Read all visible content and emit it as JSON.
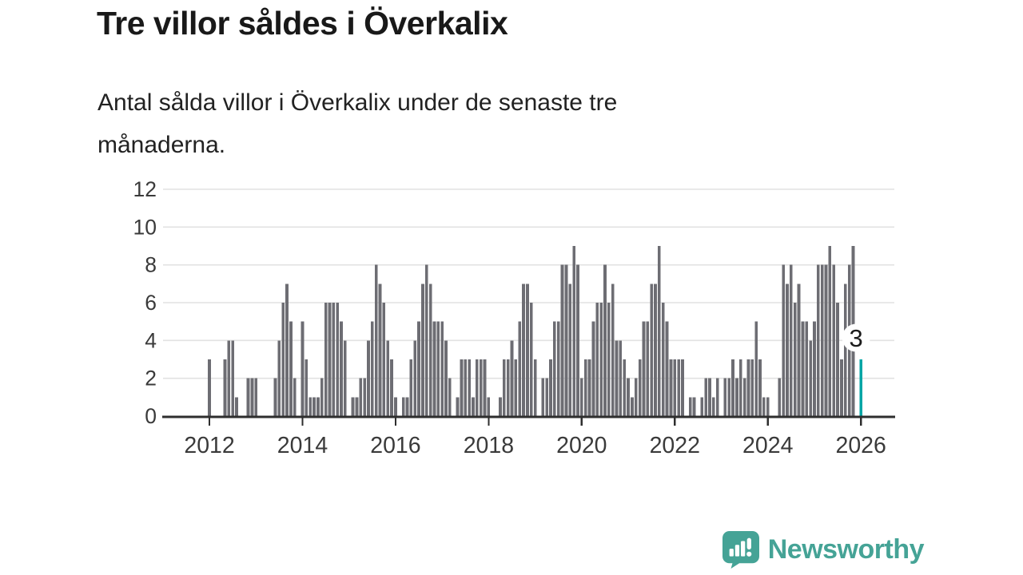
{
  "header": {
    "title": "Tre villor såldes i Överkalix",
    "subtitle_lines": [
      "Antal sålda villor i Överkalix under de senaste tre",
      "månaderna."
    ]
  },
  "chart_data": {
    "type": "bar",
    "title": "Tre villor såldes i Överkalix",
    "xlabel": "",
    "ylabel": "",
    "grid": true,
    "legend": "none",
    "ylim": [
      0,
      12
    ],
    "y_ticks": [
      0,
      2,
      4,
      6,
      8,
      10,
      12
    ],
    "x_tick_years": [
      2012,
      2014,
      2016,
      2018,
      2020,
      2022,
      2024,
      2026
    ],
    "frequency": "monthly",
    "start_year": 2012,
    "start_month": 1,
    "series": [
      {
        "year": 2012,
        "values": [
          3,
          0,
          0,
          0,
          3,
          4,
          4,
          1,
          0,
          0,
          2,
          2
        ]
      },
      {
        "year": 2013,
        "values": [
          2,
          0,
          0,
          0,
          0,
          2,
          4,
          6,
          7,
          5,
          2,
          0
        ]
      },
      {
        "year": 2014,
        "values": [
          5,
          3,
          1,
          1,
          1,
          2,
          6,
          6,
          6,
          6,
          5,
          4
        ]
      },
      {
        "year": 2015,
        "values": [
          0,
          1,
          1,
          2,
          2,
          4,
          5,
          8,
          7,
          6,
          4,
          3
        ]
      },
      {
        "year": 2016,
        "values": [
          1,
          0,
          1,
          1,
          3,
          4,
          5,
          7,
          8,
          7,
          5,
          5
        ]
      },
      {
        "year": 2017,
        "values": [
          5,
          4,
          2,
          0,
          1,
          3,
          3,
          3,
          1,
          3,
          3,
          3
        ]
      },
      {
        "year": 2018,
        "values": [
          1,
          0,
          0,
          1,
          3,
          3,
          4,
          3,
          5,
          7,
          7,
          6
        ]
      },
      {
        "year": 2019,
        "values": [
          3,
          0,
          2,
          2,
          3,
          5,
          5,
          8,
          8,
          7,
          9,
          8
        ]
      },
      {
        "year": 2020,
        "values": [
          2,
          3,
          3,
          5,
          6,
          6,
          8,
          6,
          7,
          4,
          4,
          3
        ]
      },
      {
        "year": 2021,
        "values": [
          2,
          1,
          2,
          3,
          5,
          5,
          7,
          7,
          9,
          6,
          5,
          3
        ]
      },
      {
        "year": 2022,
        "values": [
          3,
          3,
          3,
          0,
          1,
          1,
          0,
          1,
          2,
          2,
          1,
          2
        ]
      },
      {
        "year": 2023,
        "values": [
          0,
          2,
          2,
          3,
          2,
          3,
          2,
          3,
          3,
          5,
          3,
          1
        ]
      },
      {
        "year": 2024,
        "values": [
          1,
          0,
          0,
          2,
          8,
          7,
          8,
          6,
          7,
          5,
          5,
          4
        ]
      },
      {
        "year": 2025,
        "values": [
          5,
          8,
          8,
          8,
          9,
          8,
          6,
          3,
          7,
          8,
          9,
          0
        ]
      },
      {
        "year": 2026,
        "values": [
          3
        ]
      }
    ],
    "highlight_last_bar": true,
    "last_value_label": "3",
    "colors": {
      "bar": "#6d6d73",
      "highlight": "#00a5a5",
      "gridline": "#e2e2e2",
      "axis": "#2e2e2e",
      "tick_label": "#3a3a3a",
      "data_label": "#1c1c1c",
      "data_label_halo": "#ffffff"
    }
  },
  "footer": {
    "brand": "Newsworthy",
    "logo_icon": "newsworthy-speech-bubble-barchart-icon",
    "logo_color": "#45a396"
  }
}
